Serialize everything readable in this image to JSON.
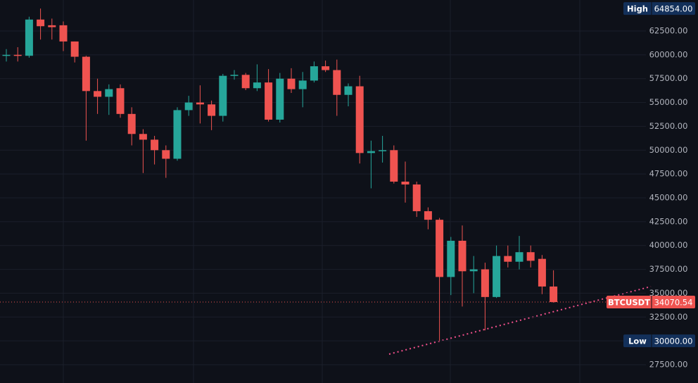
{
  "chart_data": {
    "type": "candlestick",
    "symbol": "BTCUSDT",
    "up_color": "#26a69a",
    "down_color": "#ef5350",
    "open": [
      59900,
      60000,
      59900,
      63700,
      63100,
      63100,
      61400,
      59800,
      56200,
      55600,
      56500,
      53800,
      51700,
      51100,
      50000,
      49100,
      54200,
      55000,
      54800,
      53600,
      57800,
      57900,
      56500,
      57100,
      53200,
      57500,
      56400,
      57300,
      58800,
      58400,
      55800,
      56700,
      49700,
      49900,
      50000,
      46700,
      46400,
      43600,
      42700,
      36700,
      40500,
      37300,
      37500,
      34600,
      38900,
      38300,
      39300,
      38600,
      35700
    ],
    "high": [
      60600,
      60800,
      64000,
      64854,
      63800,
      63500,
      61400,
      59900,
      57500,
      56900,
      56900,
      54500,
      52200,
      51500,
      50500,
      54500,
      55700,
      56800,
      55200,
      58000,
      58400,
      58100,
      59000,
      58500,
      58100,
      58600,
      58200,
      59300,
      59400,
      59500,
      57000,
      57800,
      51000,
      51500,
      50500,
      48800,
      46700,
      44000,
      42900,
      40900,
      42100,
      38900,
      38200,
      40000,
      40000,
      41000,
      40000,
      39000,
      37400
    ],
    "low": [
      59300,
      59300,
      59700,
      61600,
      61600,
      60400,
      59200,
      51000,
      53800,
      53700,
      53400,
      50500,
      47600,
      48500,
      47100,
      48900,
      53600,
      52800,
      52100,
      53000,
      57400,
      56300,
      56200,
      53000,
      52900,
      56000,
      54500,
      57100,
      58200,
      53600,
      54600,
      48600,
      46000,
      48700,
      46500,
      44500,
      43000,
      41700,
      30000,
      34800,
      33600,
      35000,
      31100,
      34500,
      37700,
      37500,
      37700,
      34900,
      34000
    ],
    "close": [
      60000,
      59900,
      63700,
      63000,
      62900,
      61400,
      59800,
      56200,
      55600,
      56400,
      53800,
      51700,
      51100,
      50000,
      49100,
      54200,
      55000,
      54800,
      53600,
      57800,
      57900,
      56500,
      57100,
      53200,
      57500,
      56400,
      57300,
      58800,
      58400,
      55800,
      56700,
      49700,
      49900,
      50000,
      46700,
      46400,
      43600,
      42700,
      36700,
      40500,
      37300,
      37500,
      34600,
      38900,
      38300,
      39300,
      38400,
      35700,
      34070.54
    ],
    "ylim": [
      25580,
      65750
    ],
    "yticks": [
      {
        "value": 27500,
        "label": "27500.00"
      },
      {
        "value": 30000,
        "label": "30000.00"
      },
      {
        "value": 32500,
        "label": "32500.00"
      },
      {
        "value": 35000,
        "label": "35000.00"
      },
      {
        "value": 37500,
        "label": "37500.00"
      },
      {
        "value": 40000,
        "label": "40000.00"
      },
      {
        "value": 42500,
        "label": "42500.00"
      },
      {
        "value": 45000,
        "label": "45000.00"
      },
      {
        "value": 47500,
        "label": "47500.00"
      },
      {
        "value": 50000,
        "label": "50000.00"
      },
      {
        "value": 52500,
        "label": "52500.00"
      },
      {
        "value": 55000,
        "label": "55000.00"
      },
      {
        "value": 57500,
        "label": "57500.00"
      },
      {
        "value": 60000,
        "label": "60000.00"
      },
      {
        "value": 62500,
        "label": "62500.00"
      }
    ],
    "grid": true,
    "high_marker": {
      "label": "High",
      "value": 64854,
      "value_label": "64854.00"
    },
    "low_marker": {
      "label": "Low",
      "value": 30000,
      "value_label": "30000.00"
    },
    "last_price": {
      "value": 34070.54,
      "value_label": "34070.54"
    }
  }
}
